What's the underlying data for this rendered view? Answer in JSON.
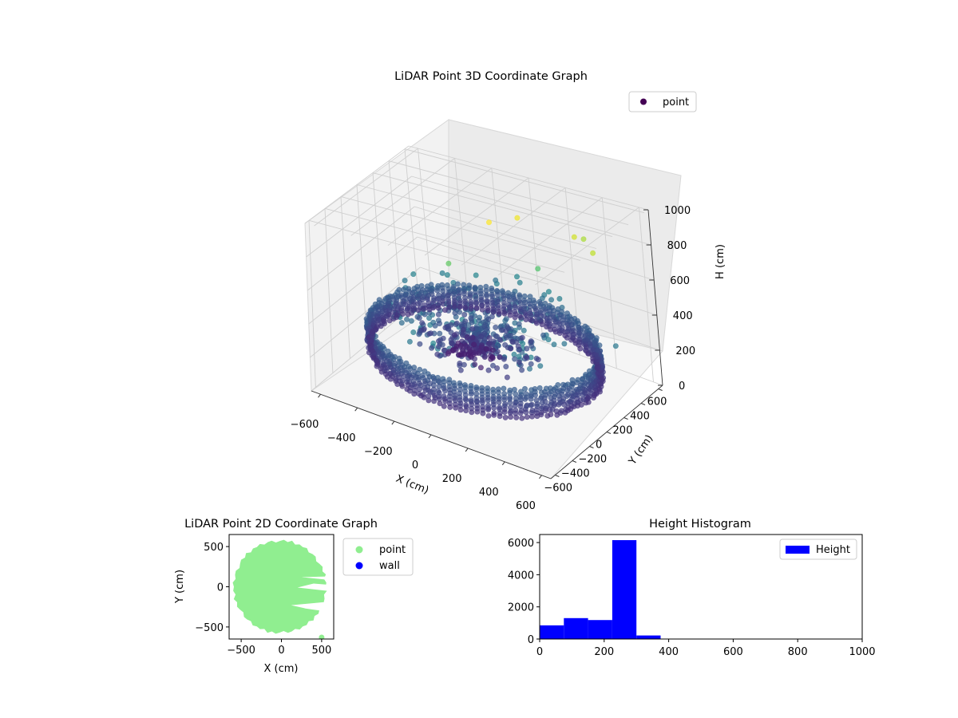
{
  "chart_data": [
    {
      "type": "scatter3d",
      "title": "LiDAR Point 3D Coordinate Graph",
      "xlabel": "X (cm)",
      "ylabel": "Y (cm)",
      "zlabel": "H (cm)",
      "xlim": [
        -650,
        650
      ],
      "ylim": [
        -650,
        650
      ],
      "zlim": [
        0,
        1000
      ],
      "z_inverted": true,
      "x_ticks": [
        -600,
        -400,
        -200,
        0,
        200,
        400,
        600
      ],
      "y_ticks": [
        -600,
        -400,
        -200,
        0,
        200,
        400,
        600
      ],
      "z_ticks": [
        0,
        200,
        400,
        600,
        800,
        1000
      ],
      "grid": true,
      "colormap": "viridis",
      "legend": {
        "entries": [
          "point"
        ],
        "placement": "upper right",
        "marker_color": "#440154"
      },
      "series": [
        {
          "name": "point",
          "description_points": {
            "ring_radius": 570,
            "ring_height_range": [
              150,
              300
            ],
            "outliers": [
              {
                "x": 560,
                "y": 150,
                "h": 900
              },
              {
                "x": 80,
                "y": -30,
                "h": 1000
              },
              {
                "x": 150,
                "y": 160,
                "h": 980
              },
              {
                "x": 420,
                "y": 350,
                "h": 870
              },
              {
                "x": 430,
                "y": 220,
                "h": 930
              },
              {
                "x": -100,
                "y": -150,
                "h": 750
              },
              {
                "x": 250,
                "y": 150,
                "h": 720
              },
              {
                "x": 640,
                "y": 180,
                "h": 400
              }
            ]
          }
        }
      ]
    },
    {
      "type": "scatter",
      "title": "LiDAR Point 2D Coordinate Graph",
      "xlabel": "X (cm)",
      "ylabel": "Y (cm)",
      "xlim": [
        -650,
        650
      ],
      "ylim": [
        -650,
        650
      ],
      "x_ticks": [
        -500,
        0,
        500
      ],
      "y_ticks": [
        -500,
        0,
        500
      ],
      "legend": {
        "placement": "outside right",
        "entries": [
          {
            "name": "point",
            "color": "#90ee90"
          },
          {
            "name": "wall",
            "color": "#0000ff"
          }
        ]
      },
      "series": [
        {
          "name": "point",
          "color": "#90ee90",
          "shape": "disk",
          "radius": 570
        },
        {
          "name": "wall",
          "color": "#0000ff"
        }
      ]
    },
    {
      "type": "bar",
      "title": "Height Histogram",
      "xlabel": "",
      "ylabel": "",
      "xlim": [
        0,
        1000
      ],
      "ylim": [
        0,
        6500
      ],
      "x_ticks": [
        0,
        200,
        400,
        600,
        800,
        1000
      ],
      "y_ticks": [
        0,
        2000,
        4000,
        6000
      ],
      "color": "#0000ff",
      "legend": {
        "entries": [
          "Height"
        ],
        "placement": "upper right"
      },
      "bins": [
        {
          "x0": 0,
          "x1": 75,
          "count": 850
        },
        {
          "x0": 75,
          "x1": 150,
          "count": 1300
        },
        {
          "x0": 150,
          "x1": 225,
          "count": 1180
        },
        {
          "x0": 225,
          "x1": 300,
          "count": 6150
        },
        {
          "x0": 300,
          "x1": 375,
          "count": 220
        },
        {
          "x0": 375,
          "x1": 450,
          "count": 20
        },
        {
          "x0": 450,
          "x1": 525,
          "count": 8
        },
        {
          "x0": 525,
          "x1": 600,
          "count": 5
        },
        {
          "x0": 600,
          "x1": 675,
          "count": 4
        },
        {
          "x0": 675,
          "x1": 750,
          "count": 3
        },
        {
          "x0": 750,
          "x1": 825,
          "count": 2
        },
        {
          "x0": 825,
          "x1": 900,
          "count": 2
        },
        {
          "x0": 900,
          "x1": 975,
          "count": 2
        },
        {
          "x0": 975,
          "x1": 1000,
          "count": 1
        }
      ]
    }
  ]
}
